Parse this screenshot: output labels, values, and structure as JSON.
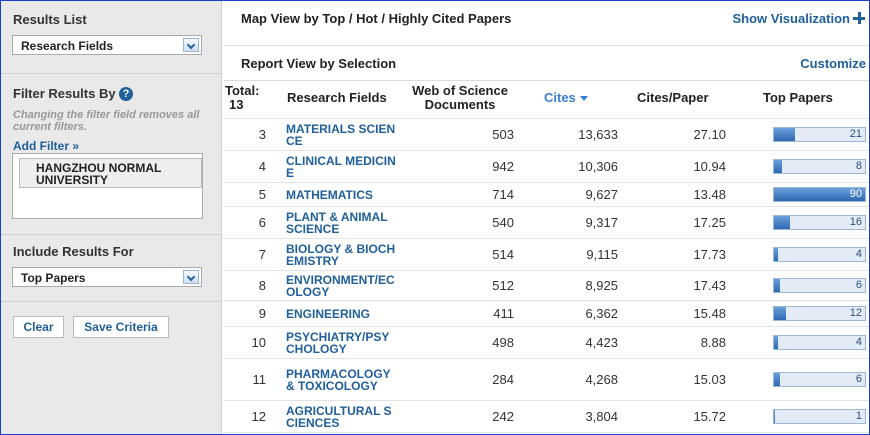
{
  "sidebar": {
    "results_list": {
      "label": "Results List",
      "selected": "Research Fields"
    },
    "filter": {
      "label": "Filter Results By",
      "note": "Changing the filter field removes all current filters.",
      "add_filter": "Add Filter »",
      "items": [
        "HANGZHOU NORMAL UNIVERSITY"
      ]
    },
    "include": {
      "label": "Include Results For",
      "selected": "Top Papers"
    },
    "buttons": [
      "Clear",
      "Save Criteria"
    ]
  },
  "header": {
    "map_view": "Map View by Top / Hot / Highly Cited Papers",
    "show_visualization": "Show Visualization",
    "report_view": "Report View by Selection",
    "customize": "Customize"
  },
  "table": {
    "total_label": "Total:",
    "total": 13,
    "columns": [
      "Research Fields",
      "Web of Science Documents",
      "Cites",
      "Cites/Paper",
      "Top Papers"
    ],
    "rows": [
      {
        "rank": 3,
        "field": "MATERIALS SCIENCE",
        "documents": 503,
        "cites": "13,633",
        "cites_per_paper": "27.10",
        "top_papers": 21
      },
      {
        "rank": 4,
        "field": "CLINICAL MEDICINE",
        "documents": 942,
        "cites": "10,306",
        "cites_per_paper": "10.94",
        "top_papers": 8
      },
      {
        "rank": 5,
        "field": "MATHEMATICS",
        "documents": 714,
        "cites": "9,627",
        "cites_per_paper": "13.48",
        "top_papers": 90
      },
      {
        "rank": 6,
        "field": "PLANT & ANIMAL SCIENCE",
        "documents": 540,
        "cites": "9,317",
        "cites_per_paper": "17.25",
        "top_papers": 16
      },
      {
        "rank": 7,
        "field": "BIOLOGY & BIOCHEMISTRY",
        "documents": 514,
        "cites": "9,115",
        "cites_per_paper": "17.73",
        "top_papers": 4
      },
      {
        "rank": 8,
        "field": "ENVIRONMENT/ECOLOGY",
        "documents": 512,
        "cites": "8,925",
        "cites_per_paper": "17.43",
        "top_papers": 6
      },
      {
        "rank": 9,
        "field": "ENGINEERING",
        "documents": 411,
        "cites": "6,362",
        "cites_per_paper": "15.48",
        "top_papers": 12
      },
      {
        "rank": 10,
        "field": "PSYCHIATRY/PSYCHOLOGY",
        "documents": 498,
        "cites": "4,423",
        "cites_per_paper": "8.88",
        "top_papers": 4
      },
      {
        "rank": 11,
        "field": "PHARMACOLOGY & TOXICOLOGY",
        "documents": 284,
        "cites": "4,268",
        "cites_per_paper": "15.03",
        "top_papers": 6
      },
      {
        "rank": 12,
        "field": "AGRICULTURAL SCIENCES",
        "documents": 242,
        "cites": "3,804",
        "cites_per_paper": "15.72",
        "top_papers": 1
      }
    ]
  }
}
